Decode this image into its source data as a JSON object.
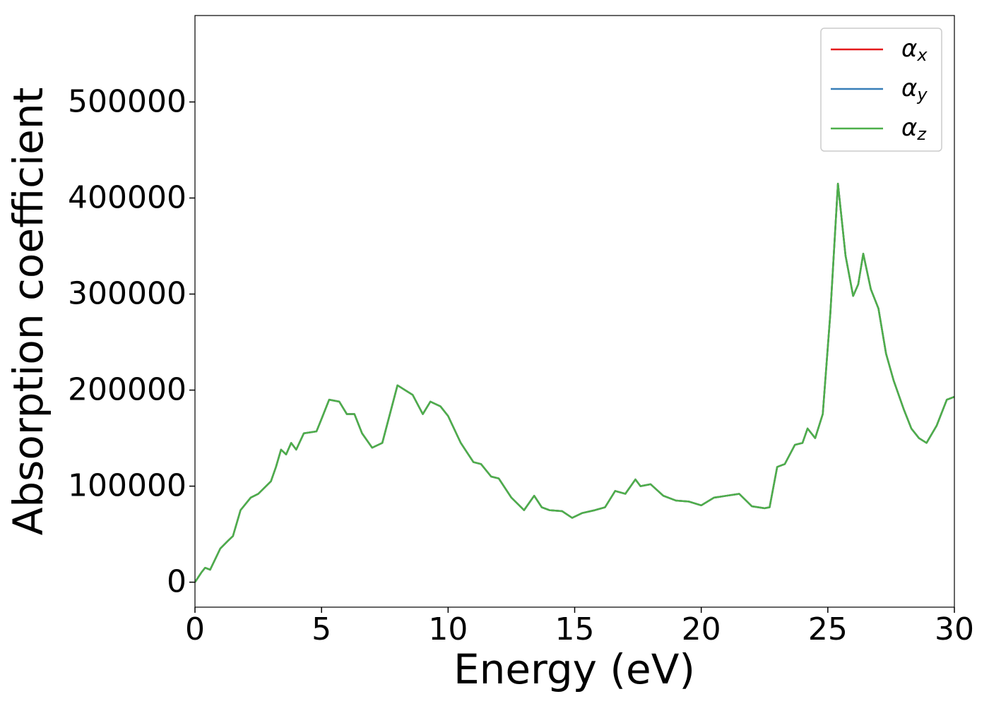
{
  "chart_data": {
    "type": "line",
    "xlabel": "Energy (eV)",
    "ylabel": "Absorption coefficient",
    "x": [
      0,
      0.25,
      0.4,
      0.6,
      1,
      1.3,
      1.5,
      1.8,
      2.2,
      2.5,
      3,
      3.2,
      3.4,
      3.6,
      3.8,
      4,
      4.3,
      4.8,
      5,
      5.3,
      5.7,
      6,
      6.3,
      6.6,
      7,
      7.4,
      8,
      8.3,
      8.6,
      9,
      9.3,
      9.7,
      10,
      10.5,
      11,
      11.3,
      11.7,
      12,
      12.5,
      13,
      13.4,
      13.7,
      14,
      14.5,
      14.9,
      15.3,
      15.8,
      16.2,
      16.6,
      17,
      17.4,
      17.6,
      18,
      18.5,
      19,
      19.5,
      20,
      20.5,
      21,
      21.5,
      22,
      22.5,
      22.7,
      23,
      23.3,
      23.7,
      24,
      24.2,
      24.5,
      24.8,
      25.1,
      25.4,
      25.7,
      26,
      26.2,
      26.4,
      26.7,
      27,
      27.3,
      27.6,
      28,
      28.3,
      28.6,
      28.9,
      29.3,
      29.7,
      30
    ],
    "series": [
      {
        "name": "αx",
        "color": "#e41a1c",
        "values": [
          0,
          10000,
          15000,
          13000,
          35000,
          43000,
          48000,
          75000,
          88000,
          92000,
          105000,
          120000,
          138000,
          133000,
          145000,
          138000,
          155000,
          157000,
          170000,
          190000,
          188000,
          175000,
          175000,
          155000,
          140000,
          145000,
          205000,
          200000,
          195000,
          175000,
          188000,
          183000,
          173000,
          145000,
          125000,
          123000,
          110000,
          108000,
          88000,
          75000,
          90000,
          78000,
          75000,
          74000,
          67000,
          72000,
          75000,
          78000,
          95000,
          92000,
          107000,
          100000,
          102000,
          90000,
          85000,
          84000,
          80000,
          88000,
          90000,
          92000,
          79000,
          77000,
          78000,
          120000,
          123000,
          143000,
          145000,
          160000,
          150000,
          175000,
          280000,
          415000,
          340000,
          298000,
          310000,
          342000,
          305000,
          285000,
          238000,
          210000,
          180000,
          160000,
          150000,
          145000,
          163000,
          190000,
          193000
        ]
      },
      {
        "name": "αy",
        "color": "#377eb8",
        "values": [
          0,
          10000,
          15000,
          13000,
          35000,
          43000,
          48000,
          75000,
          88000,
          92000,
          105000,
          120000,
          138000,
          133000,
          145000,
          138000,
          155000,
          157000,
          170000,
          190000,
          188000,
          175000,
          175000,
          155000,
          140000,
          145000,
          205000,
          200000,
          195000,
          175000,
          188000,
          183000,
          173000,
          145000,
          125000,
          123000,
          110000,
          108000,
          88000,
          75000,
          90000,
          78000,
          75000,
          74000,
          67000,
          72000,
          75000,
          78000,
          95000,
          92000,
          107000,
          100000,
          102000,
          90000,
          85000,
          84000,
          80000,
          88000,
          90000,
          92000,
          79000,
          77000,
          78000,
          120000,
          123000,
          143000,
          145000,
          160000,
          150000,
          175000,
          280000,
          415000,
          340000,
          298000,
          310000,
          342000,
          305000,
          285000,
          238000,
          210000,
          180000,
          160000,
          150000,
          145000,
          163000,
          190000,
          193000
        ]
      },
      {
        "name": "αz",
        "color": "#4daf4a",
        "values": [
          0,
          10000,
          15000,
          13000,
          35000,
          43000,
          48000,
          75000,
          88000,
          92000,
          105000,
          120000,
          138000,
          133000,
          145000,
          138000,
          155000,
          157000,
          170000,
          190000,
          188000,
          175000,
          175000,
          155000,
          140000,
          145000,
          205000,
          200000,
          195000,
          175000,
          188000,
          183000,
          173000,
          145000,
          125000,
          123000,
          110000,
          108000,
          88000,
          75000,
          90000,
          78000,
          75000,
          74000,
          67000,
          72000,
          75000,
          78000,
          95000,
          92000,
          107000,
          100000,
          102000,
          90000,
          85000,
          84000,
          80000,
          88000,
          90000,
          92000,
          79000,
          77000,
          78000,
          120000,
          123000,
          143000,
          145000,
          160000,
          150000,
          175000,
          280000,
          415000,
          340000,
          298000,
          310000,
          342000,
          305000,
          285000,
          238000,
          210000,
          180000,
          160000,
          150000,
          145000,
          163000,
          190000,
          193000
        ]
      }
    ],
    "xlim": [
      0,
      30
    ],
    "xticks": [
      0,
      5,
      10,
      15,
      20,
      25,
      30
    ],
    "ylim": [
      -26000,
      590000
    ],
    "yticks": [
      0,
      100000,
      200000,
      300000,
      400000,
      500000
    ],
    "grid": false,
    "legend": "upper right"
  }
}
